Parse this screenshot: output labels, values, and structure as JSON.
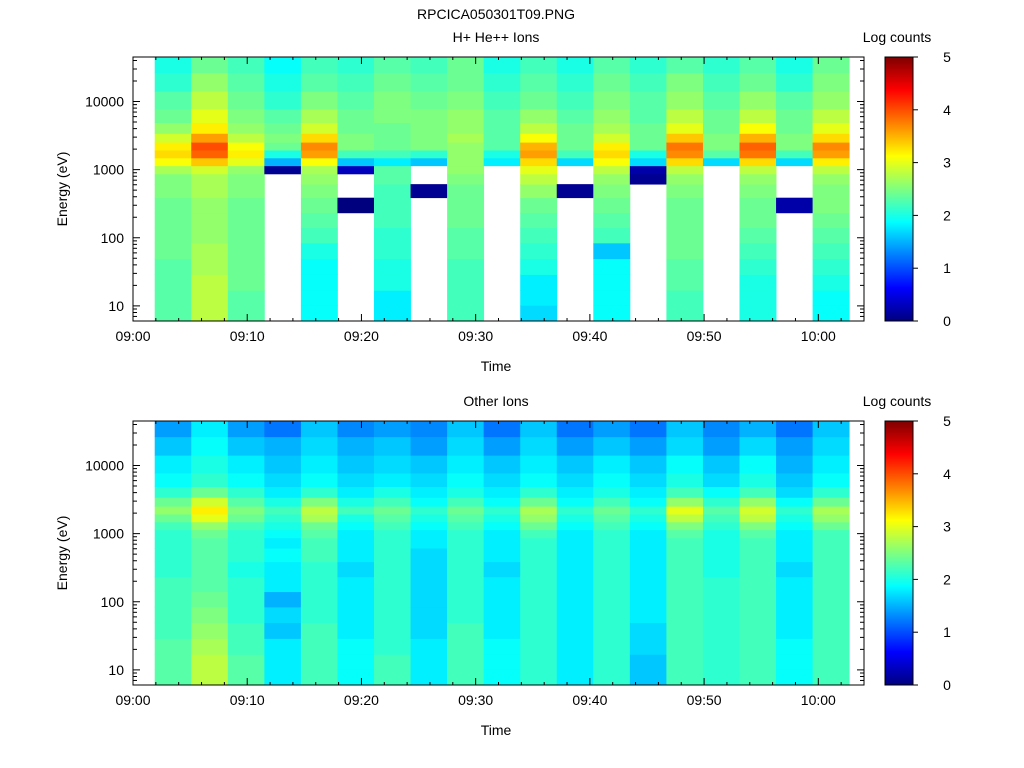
{
  "figure_title": "RPCICA050301T09.PNG",
  "colors": {
    "colormap": [
      "#00007f",
      "#0000ff",
      "#007fff",
      "#00ffff",
      "#7fff7f",
      "#ffff00",
      "#ff7f00",
      "#ff0000",
      "#7f0000"
    ],
    "background": "#ffffff"
  },
  "chart_data": [
    {
      "type": "heatmap",
      "title": "H+ He++ Ions",
      "xlabel": "Time",
      "ylabel": "Energy (eV)",
      "colorbar_label": "Log counts",
      "colorbar_range": [
        0,
        5
      ],
      "colorbar_ticks": [
        "0",
        "1",
        "2",
        "3",
        "4",
        "5"
      ],
      "x_ticks": [
        "09:00",
        "09:10",
        "09:20",
        "09:30",
        "09:40",
        "09:50",
        "10:00"
      ],
      "x_range_minutes": [
        0,
        64
      ],
      "y_scale": "log",
      "y_ticks": [
        "10",
        "100",
        "1000",
        "10000"
      ],
      "y_range": [
        6,
        45000
      ],
      "sweep_start_minutes": [
        1.9,
        5.1,
        8.3,
        11.5,
        14.7,
        17.9,
        21.1,
        24.3,
        27.5,
        30.7,
        33.9,
        37.1,
        40.3,
        43.5,
        46.7,
        49.9,
        53.1,
        56.3,
        59.5
      ],
      "sweep_width_minutes": 3.2,
      "energy_bins_eV": [
        8,
        13,
        22,
        38,
        64,
        110,
        180,
        300,
        500,
        750,
        1000,
        1300,
        1700,
        2200,
        2900,
        4000,
        6000,
        10000,
        20000,
        35000
      ],
      "log_counts": [
        [
          2.3,
          2.3,
          2.3,
          2.3,
          2.4,
          2.4,
          2.4,
          2.4,
          2.5,
          2.5,
          2.7,
          3.1,
          3.3,
          3.2,
          2.9,
          2.6,
          2.4,
          2.3,
          2.1,
          2.0
        ],
        [
          2.8,
          2.8,
          2.8,
          2.7,
          2.7,
          2.6,
          2.6,
          2.6,
          2.7,
          2.7,
          2.9,
          3.4,
          3.9,
          4.0,
          3.6,
          3.2,
          3.0,
          2.8,
          2.6,
          2.4
        ],
        [
          2.3,
          2.3,
          2.4,
          2.4,
          2.4,
          2.4,
          2.4,
          2.4,
          2.5,
          2.5,
          2.6,
          3.0,
          3.2,
          3.1,
          2.8,
          2.6,
          2.5,
          2.4,
          2.3,
          2.2
        ],
        [
          null,
          null,
          null,
          null,
          null,
          null,
          null,
          null,
          null,
          null,
          0.1,
          1.5,
          2.0,
          2.4,
          2.5,
          2.4,
          2.3,
          2.1,
          2.0,
          1.9
        ],
        [
          1.9,
          1.9,
          1.9,
          1.9,
          2.0,
          2.2,
          2.3,
          2.4,
          2.5,
          2.6,
          2.7,
          3.1,
          3.6,
          3.7,
          3.3,
          2.9,
          2.7,
          2.5,
          2.3,
          2.2
        ],
        [
          null,
          null,
          null,
          null,
          null,
          null,
          null,
          0.0,
          null,
          null,
          0.3,
          1.6,
          2.2,
          2.5,
          2.5,
          2.4,
          2.4,
          2.3,
          2.2,
          2.1
        ],
        [
          1.8,
          1.8,
          2.0,
          2.0,
          2.1,
          2.1,
          2.2,
          2.2,
          2.2,
          2.3,
          2.3,
          1.8,
          2.2,
          2.4,
          2.4,
          2.4,
          2.5,
          2.5,
          2.4,
          2.3
        ],
        [
          null,
          null,
          null,
          null,
          null,
          null,
          null,
          null,
          0.1,
          null,
          null,
          1.6,
          2.1,
          2.5,
          2.5,
          2.5,
          2.5,
          2.4,
          2.3,
          2.2
        ],
        [
          2.2,
          2.2,
          2.2,
          2.2,
          2.3,
          2.3,
          2.4,
          2.4,
          2.4,
          2.5,
          2.6,
          2.6,
          2.6,
          2.6,
          2.7,
          2.6,
          2.6,
          2.5,
          2.4,
          2.4
        ],
        [
          null,
          null,
          null,
          null,
          null,
          null,
          null,
          null,
          null,
          null,
          null,
          1.8,
          2.0,
          2.3,
          2.3,
          2.3,
          2.3,
          2.2,
          2.1,
          2.0
        ],
        [
          1.7,
          1.8,
          1.8,
          2.0,
          2.1,
          2.2,
          2.3,
          2.4,
          2.6,
          2.8,
          3.0,
          3.3,
          3.6,
          3.5,
          3.1,
          2.8,
          2.6,
          2.4,
          2.3,
          2.2
        ],
        [
          null,
          null,
          null,
          null,
          null,
          null,
          null,
          null,
          0.1,
          null,
          null,
          1.7,
          2.2,
          2.4,
          2.4,
          2.4,
          2.3,
          2.2,
          2.1,
          2.0
        ],
        [
          1.9,
          1.9,
          1.9,
          1.9,
          1.6,
          2.2,
          2.3,
          2.4,
          2.5,
          2.6,
          2.8,
          3.1,
          3.3,
          3.2,
          2.9,
          2.7,
          2.6,
          2.5,
          2.4,
          2.3
        ],
        [
          null,
          null,
          null,
          null,
          null,
          null,
          null,
          null,
          null,
          0.1,
          0.2,
          1.7,
          2.0,
          2.4,
          2.4,
          2.4,
          2.3,
          2.3,
          2.2,
          2.1
        ],
        [
          2.2,
          2.2,
          2.3,
          2.3,
          2.4,
          2.4,
          2.4,
          2.4,
          2.5,
          2.6,
          2.8,
          3.3,
          3.7,
          3.8,
          3.4,
          3.0,
          2.8,
          2.6,
          2.5,
          2.3
        ],
        [
          null,
          null,
          null,
          null,
          null,
          null,
          null,
          null,
          null,
          null,
          null,
          1.7,
          2.3,
          2.5,
          2.5,
          2.4,
          2.4,
          2.3,
          2.2,
          2.1
        ],
        [
          2.0,
          2.0,
          2.0,
          2.1,
          2.2,
          2.3,
          2.4,
          2.4,
          2.5,
          2.6,
          2.8,
          3.3,
          3.8,
          3.9,
          3.5,
          3.1,
          2.8,
          2.6,
          2.4,
          2.3
        ],
        [
          null,
          null,
          null,
          null,
          null,
          null,
          null,
          0.2,
          null,
          null,
          null,
          1.7,
          2.2,
          2.5,
          2.5,
          2.4,
          2.4,
          2.3,
          2.1,
          2.0
        ],
        [
          1.9,
          1.9,
          2.0,
          2.1,
          2.2,
          2.3,
          2.4,
          2.5,
          2.5,
          2.6,
          2.8,
          3.2,
          3.6,
          3.7,
          3.3,
          3.0,
          2.8,
          2.6,
          2.5,
          2.4
        ]
      ]
    },
    {
      "type": "heatmap",
      "title": "Other Ions",
      "xlabel": "Time",
      "ylabel": "Energy (eV)",
      "colorbar_label": "Log counts",
      "colorbar_range": [
        0,
        5
      ],
      "colorbar_ticks": [
        "0",
        "1",
        "2",
        "3",
        "4",
        "5"
      ],
      "x_ticks": [
        "09:00",
        "09:10",
        "09:20",
        "09:30",
        "09:40",
        "09:50",
        "10:00"
      ],
      "x_range_minutes": [
        0,
        64
      ],
      "y_scale": "log",
      "y_ticks": [
        "10",
        "100",
        "1000",
        "10000"
      ],
      "y_range": [
        6,
        45000
      ],
      "sweep_start_minutes": [
        1.9,
        5.1,
        8.3,
        11.5,
        14.7,
        17.9,
        21.1,
        24.3,
        27.5,
        30.7,
        33.9,
        37.1,
        40.3,
        43.5,
        46.7,
        49.9,
        53.1,
        56.3,
        59.5
      ],
      "sweep_width_minutes": 3.2,
      "energy_bins_eV": [
        8,
        13,
        22,
        38,
        64,
        110,
        180,
        300,
        500,
        750,
        1000,
        1300,
        1700,
        2200,
        2900,
        4000,
        6000,
        10000,
        20000,
        35000
      ],
      "log_counts": [
        [
          2.3,
          2.3,
          2.3,
          2.2,
          2.2,
          2.2,
          2.2,
          2.1,
          2.1,
          2.1,
          2.1,
          2.2,
          2.4,
          2.6,
          2.4,
          2.1,
          1.9,
          1.8,
          1.6,
          1.4
        ],
        [
          2.8,
          2.8,
          2.7,
          2.6,
          2.5,
          2.4,
          2.3,
          2.3,
          2.3,
          2.3,
          2.4,
          2.6,
          3.0,
          3.2,
          2.9,
          2.4,
          2.1,
          2.0,
          1.9,
          1.8
        ],
        [
          2.3,
          2.3,
          2.2,
          2.2,
          2.1,
          2.1,
          2.1,
          2.0,
          2.1,
          2.1,
          2.1,
          2.2,
          2.4,
          2.5,
          2.3,
          2.1,
          1.9,
          1.8,
          1.6,
          1.4
        ],
        [
          1.8,
          1.8,
          1.8,
          1.6,
          1.7,
          1.5,
          1.8,
          1.8,
          1.9,
          1.8,
          1.9,
          2.0,
          2.1,
          2.2,
          2.0,
          1.8,
          1.7,
          1.6,
          1.5,
          1.2
        ],
        [
          2.2,
          2.2,
          2.2,
          2.2,
          2.1,
          2.1,
          2.1,
          2.1,
          2.2,
          2.2,
          2.3,
          2.4,
          2.7,
          2.8,
          2.5,
          2.1,
          1.9,
          1.8,
          1.7,
          1.6
        ],
        [
          1.9,
          1.9,
          1.9,
          1.8,
          1.8,
          1.8,
          1.8,
          1.7,
          1.8,
          1.8,
          1.8,
          1.9,
          2.0,
          2.2,
          2.0,
          1.8,
          1.7,
          1.6,
          1.5,
          1.3
        ],
        [
          2.2,
          2.2,
          2.1,
          2.1,
          2.1,
          2.1,
          2.1,
          2.1,
          2.1,
          2.1,
          2.1,
          2.2,
          2.3,
          2.4,
          2.2,
          2.0,
          1.8,
          1.7,
          1.6,
          1.4
        ],
        [
          1.8,
          1.8,
          1.8,
          1.7,
          1.7,
          1.7,
          1.7,
          1.7,
          1.7,
          1.8,
          1.8,
          1.9,
          2.0,
          2.1,
          1.9,
          1.8,
          1.7,
          1.6,
          1.4,
          1.3
        ],
        [
          2.2,
          2.2,
          2.2,
          2.2,
          2.1,
          2.1,
          2.1,
          2.1,
          2.1,
          2.1,
          2.1,
          2.2,
          2.3,
          2.4,
          2.2,
          2.0,
          1.9,
          1.8,
          1.7,
          1.6
        ],
        [
          1.9,
          1.9,
          1.9,
          1.8,
          1.8,
          1.8,
          1.8,
          1.7,
          1.8,
          1.8,
          1.8,
          1.9,
          2.0,
          2.1,
          1.9,
          1.8,
          1.7,
          1.6,
          1.4,
          1.2
        ],
        [
          2.1,
          2.1,
          2.1,
          2.1,
          2.1,
          2.1,
          2.1,
          2.1,
          2.1,
          2.1,
          2.2,
          2.4,
          2.6,
          2.7,
          2.4,
          2.1,
          1.9,
          1.8,
          1.7,
          1.6
        ],
        [
          1.8,
          1.8,
          1.8,
          1.8,
          1.8,
          1.8,
          1.8,
          1.8,
          1.8,
          1.8,
          1.8,
          1.9,
          2.0,
          2.1,
          1.9,
          1.8,
          1.7,
          1.6,
          1.4,
          1.2
        ],
        [
          2.1,
          2.1,
          2.1,
          2.1,
          2.1,
          2.1,
          2.1,
          2.1,
          2.1,
          2.1,
          2.1,
          2.2,
          2.3,
          2.4,
          2.2,
          2.0,
          1.9,
          1.8,
          1.6,
          1.4
        ],
        [
          1.6,
          1.6,
          1.7,
          1.7,
          1.8,
          1.8,
          1.8,
          1.8,
          1.8,
          1.8,
          1.8,
          1.9,
          2.0,
          2.1,
          1.9,
          1.8,
          1.7,
          1.6,
          1.4,
          1.2
        ],
        [
          2.2,
          2.2,
          2.2,
          2.2,
          2.2,
          2.2,
          2.2,
          2.2,
          2.2,
          2.2,
          2.3,
          2.5,
          2.8,
          3.0,
          2.6,
          2.2,
          2.0,
          1.9,
          1.7,
          1.6
        ],
        [
          2.1,
          2.1,
          2.1,
          2.1,
          2.1,
          2.1,
          2.1,
          2.0,
          2.0,
          2.0,
          2.0,
          2.1,
          2.2,
          2.3,
          2.1,
          1.9,
          1.7,
          1.6,
          1.4,
          1.3
        ],
        [
          2.2,
          2.2,
          2.2,
          2.2,
          2.2,
          2.2,
          2.2,
          2.2,
          2.2,
          2.2,
          2.3,
          2.5,
          2.8,
          2.9,
          2.6,
          2.2,
          2.0,
          1.9,
          1.7,
          1.5
        ],
        [
          1.9,
          1.9,
          1.9,
          1.8,
          1.8,
          1.8,
          1.8,
          1.7,
          1.8,
          1.8,
          1.8,
          1.9,
          2.0,
          2.1,
          1.9,
          1.7,
          1.6,
          1.5,
          1.4,
          1.2
        ],
        [
          2.2,
          2.2,
          2.2,
          2.2,
          2.2,
          2.2,
          2.2,
          2.2,
          2.2,
          2.2,
          2.2,
          2.4,
          2.6,
          2.7,
          2.4,
          2.1,
          1.9,
          1.8,
          1.7,
          1.6
        ]
      ]
    }
  ]
}
